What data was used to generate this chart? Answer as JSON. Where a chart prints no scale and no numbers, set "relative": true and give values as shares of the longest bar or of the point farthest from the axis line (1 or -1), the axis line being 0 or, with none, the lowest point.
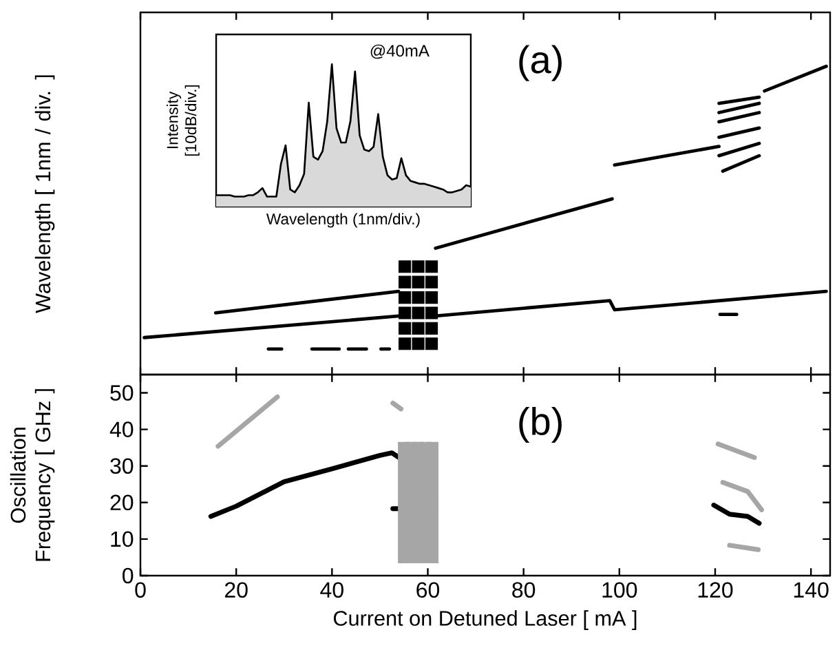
{
  "chart_data": [
    {
      "type": "line",
      "ylabel": "Wavelength [ 1nm / div. ]",
      "annotations": [
        "(a)"
      ],
      "relative": true,
      "xlim": [
        0,
        144
      ],
      "xticks": [
        0,
        20,
        40,
        60,
        80,
        100,
        120,
        140
      ],
      "tick_labels": false,
      "series": [
        {
          "color": "#000000",
          "x": [
            0.8,
            54
          ],
          "values": [
            0.12,
            0.19
          ]
        },
        {
          "color": "#000000",
          "x": [
            61.6,
            98,
            99,
            143.2
          ],
          "values": [
            0.19,
            0.24,
            0.21,
            0.27
          ]
        },
        {
          "color": "#000000",
          "x": [
            15.7,
            53.9
          ],
          "values": [
            0.2,
            0.27
          ]
        },
        {
          "color": "#000000",
          "x": [
            61.6,
            98.5
          ],
          "values": [
            0.41,
            0.57
          ]
        },
        {
          "color": "#000000",
          "x": [
            99,
            120.8
          ],
          "values": [
            0.68,
            0.74
          ]
        },
        {
          "color": "#000000",
          "x": [
            130.3,
            143.2
          ],
          "values": [
            0.92,
            1.0
          ]
        },
        {
          "color": "#000000",
          "x": [
            26.7,
            29.5
          ],
          "values": [
            0.083,
            0.083
          ]
        },
        {
          "color": "#000000",
          "x": [
            35.8,
            41.5
          ],
          "values": [
            0.083,
            0.083
          ]
        },
        {
          "color": "#000000",
          "x": [
            43.4,
            47.2
          ],
          "values": [
            0.083,
            0.083
          ]
        },
        {
          "color": "#000000",
          "x": [
            50.2,
            52
          ],
          "values": [
            0.083,
            0.083
          ]
        },
        {
          "color": "#000000",
          "x": [
            120.8,
            129.2
          ],
          "values": [
            0.88,
            0.9
          ]
        },
        {
          "color": "#000000",
          "x": [
            120.8,
            129.2
          ],
          "values": [
            0.85,
            0.88
          ]
        },
        {
          "color": "#000000",
          "x": [
            120.8,
            129.2
          ],
          "values": [
            0.82,
            0.85
          ]
        },
        {
          "color": "#000000",
          "x": [
            120.8,
            129.2
          ],
          "values": [
            0.77,
            0.8
          ]
        },
        {
          "color": "#000000",
          "x": [
            120.8,
            129.2
          ],
          "values": [
            0.71,
            0.75
          ]
        },
        {
          "color": "#000000",
          "x": [
            121.6,
            129.2
          ],
          "values": [
            0.66,
            0.71
          ]
        },
        {
          "color": "#000000",
          "x": [
            121,
            124.5
          ],
          "values": [
            0.195,
            0.195
          ]
        },
        {
          "type": "scatter",
          "color": "#000000",
          "x": [
            55.2,
            55.2,
            55.2,
            55.2,
            55.2,
            55.2,
            58,
            58,
            58,
            58,
            58,
            58,
            60.8,
            60.8,
            60.8,
            60.8,
            60.8,
            60.8
          ],
          "values": [
            0.1,
            0.15,
            0.2,
            0.25,
            0.3,
            0.35,
            0.1,
            0.15,
            0.2,
            0.25,
            0.3,
            0.35,
            0.1,
            0.15,
            0.2,
            0.25,
            0.3,
            0.35
          ]
        }
      ]
    },
    {
      "type": "area",
      "xlabel": "Wavelength (1nm/div.)",
      "ylabel": "Intensity [10dB/div.]",
      "annotations": [
        "@40mA"
      ],
      "relative": true,
      "tick_labels": false,
      "categories": [
        null,
        null,
        null,
        null,
        null,
        null,
        null,
        null,
        null,
        null,
        null,
        null,
        null,
        null,
        null,
        null,
        null,
        null,
        null,
        null,
        null,
        null,
        null,
        null,
        null,
        null,
        null,
        null,
        null,
        null,
        null,
        null,
        null,
        null,
        null,
        null,
        null,
        null,
        null,
        null,
        null,
        null,
        null,
        null,
        null,
        null,
        null,
        null,
        null,
        null,
        null,
        null,
        null,
        null,
        null,
        null
      ],
      "series": [
        {
          "color": "#d9d9d9",
          "values": [
            0.08,
            0.08,
            0.08,
            0.08,
            0.07,
            0.07,
            0.07,
            0.08,
            0.08,
            0.1,
            0.13,
            0.07,
            0.07,
            0.07,
            0.3,
            0.43,
            0.12,
            0.1,
            0.15,
            0.23,
            0.73,
            0.35,
            0.33,
            0.39,
            0.6,
            1.0,
            0.55,
            0.45,
            0.45,
            0.6,
            0.95,
            0.5,
            0.4,
            0.39,
            0.42,
            0.65,
            0.35,
            0.22,
            0.19,
            0.2,
            0.34,
            0.22,
            0.18,
            0.17,
            0.16,
            0.16,
            0.15,
            0.14,
            0.13,
            0.12,
            0.1,
            0.1,
            0.11,
            0.12,
            0.15,
            0.14
          ]
        }
      ]
    },
    {
      "type": "line",
      "xlabel": "Current on Detuned Laser   [ mA ]",
      "ylabel": "Oscillation Frequency [ GHz ]",
      "annotations": [
        "(b)"
      ],
      "xlim": [
        0,
        144
      ],
      "xticks": [
        0,
        20,
        40,
        60,
        80,
        100,
        120,
        140
      ],
      "ylim": [
        0,
        55
      ],
      "yticks": [
        0,
        10,
        20,
        30,
        40,
        50
      ],
      "series": [
        {
          "color": "#000000",
          "x": [
            14.7,
            20,
            30,
            40,
            50,
            52.5,
            54
          ],
          "values": [
            16.2,
            19,
            25.7,
            29.2,
            32.9,
            33.6,
            32.3
          ]
        },
        {
          "color": "#000000",
          "x": [
            52.7,
            54.5
          ],
          "values": [
            18.3,
            18.3
          ]
        },
        {
          "color": "#000000",
          "x": [
            119.7,
            123,
            126.8,
            129.2
          ],
          "values": [
            19.3,
            16.8,
            16.2,
            14.3
          ]
        },
        {
          "color": "#a6a6a6",
          "x": [
            16.2,
            28.6
          ],
          "values": [
            35.4,
            48.9
          ]
        },
        {
          "color": "#a6a6a6",
          "x": [
            52.7,
            54.4
          ],
          "values": [
            47.2,
            45.6
          ]
        },
        {
          "color": "#a6a6a6",
          "x": [
            120.6,
            128.2
          ],
          "values": [
            36,
            32.3
          ]
        },
        {
          "color": "#a6a6a6",
          "x": [
            121.6,
            126.8,
            129.7
          ],
          "values": [
            25.5,
            23,
            18
          ]
        },
        {
          "color": "#a6a6a6",
          "x": [
            123,
            129
          ],
          "values": [
            8.3,
            7.1
          ]
        },
        {
          "type": "scatter",
          "color": "#a6a6a6",
          "x": [
            55,
            55,
            55,
            55,
            55,
            55,
            55,
            55,
            55,
            55,
            55,
            56.5,
            56.5,
            56.5,
            56.5,
            56.5,
            56.5,
            56.5,
            56.5,
            56.5,
            56.5,
            56.5,
            58,
            58,
            58,
            58,
            58,
            58,
            58,
            58,
            58,
            58,
            58,
            59.5,
            59.5,
            59.5,
            59.5,
            59.5,
            59.5,
            59.5,
            59.5,
            59.5,
            59.5,
            59.5,
            61,
            61,
            61,
            61,
            61,
            61,
            61,
            61,
            61,
            61,
            61
          ],
          "values": [
            5,
            8,
            11,
            14,
            17,
            20,
            23,
            26,
            29,
            32,
            35,
            5,
            8,
            11,
            14,
            17,
            20,
            23,
            26,
            29,
            32,
            35,
            5,
            8,
            11,
            14,
            17,
            20,
            23,
            26,
            29,
            32,
            35,
            5,
            8,
            11,
            14,
            17,
            20,
            23,
            26,
            29,
            32,
            35,
            5,
            8,
            11,
            14,
            17,
            20,
            23,
            26,
            29,
            32,
            35
          ]
        }
      ]
    }
  ]
}
